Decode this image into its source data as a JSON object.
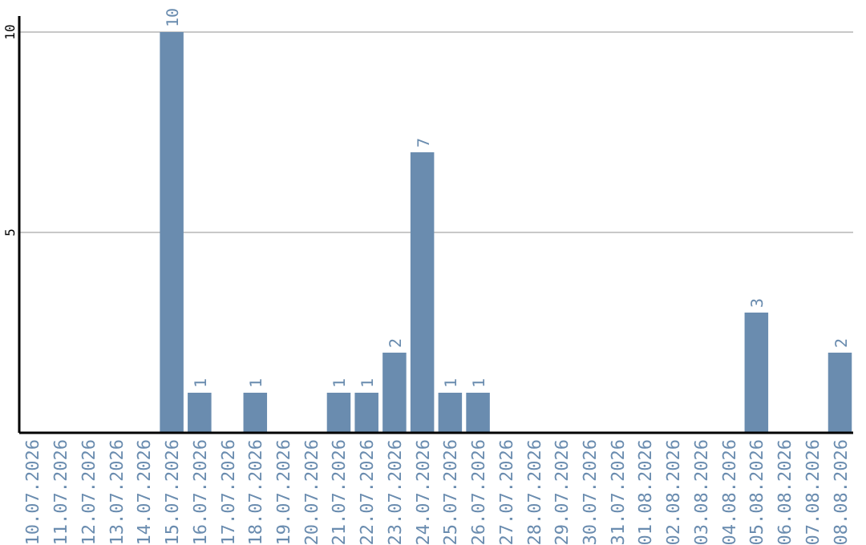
{
  "chart_data": {
    "type": "bar",
    "categories": [
      "10.07.2026",
      "11.07.2026",
      "12.07.2026",
      "13.07.2026",
      "14.07.2026",
      "15.07.2026",
      "16.07.2026",
      "17.07.2026",
      "18.07.2026",
      "19.07.2026",
      "20.07.2026",
      "21.07.2026",
      "22.07.2026",
      "23.07.2026",
      "24.07.2026",
      "25.07.2026",
      "26.07.2026",
      "27.07.2026",
      "28.07.2026",
      "29.07.2026",
      "30.07.2026",
      "31.07.2026",
      "01.08.2026",
      "02.08.2026",
      "03.08.2026",
      "04.08.2026",
      "05.08.2026",
      "06.08.2026",
      "07.08.2026",
      "08.08.2026"
    ],
    "values": [
      0,
      0,
      0,
      0,
      0,
      10,
      1,
      0,
      1,
      0,
      0,
      1,
      1,
      2,
      7,
      1,
      1,
      0,
      0,
      0,
      0,
      0,
      0,
      0,
      0,
      0,
      3,
      0,
      0,
      2
    ],
    "value_labels": [
      null,
      null,
      null,
      null,
      null,
      "10",
      "1",
      null,
      "1",
      null,
      null,
      "1",
      "1",
      "2",
      "7",
      "1",
      "1",
      null,
      null,
      null,
      null,
      null,
      null,
      null,
      null,
      null,
      "3",
      null,
      null,
      "2"
    ],
    "color": "#6a8caf",
    "ylim": [
      0,
      10.4
    ],
    "yticks": [
      {
        "value": 0,
        "label": null
      },
      5,
      10
    ],
    "grid": "y"
  }
}
